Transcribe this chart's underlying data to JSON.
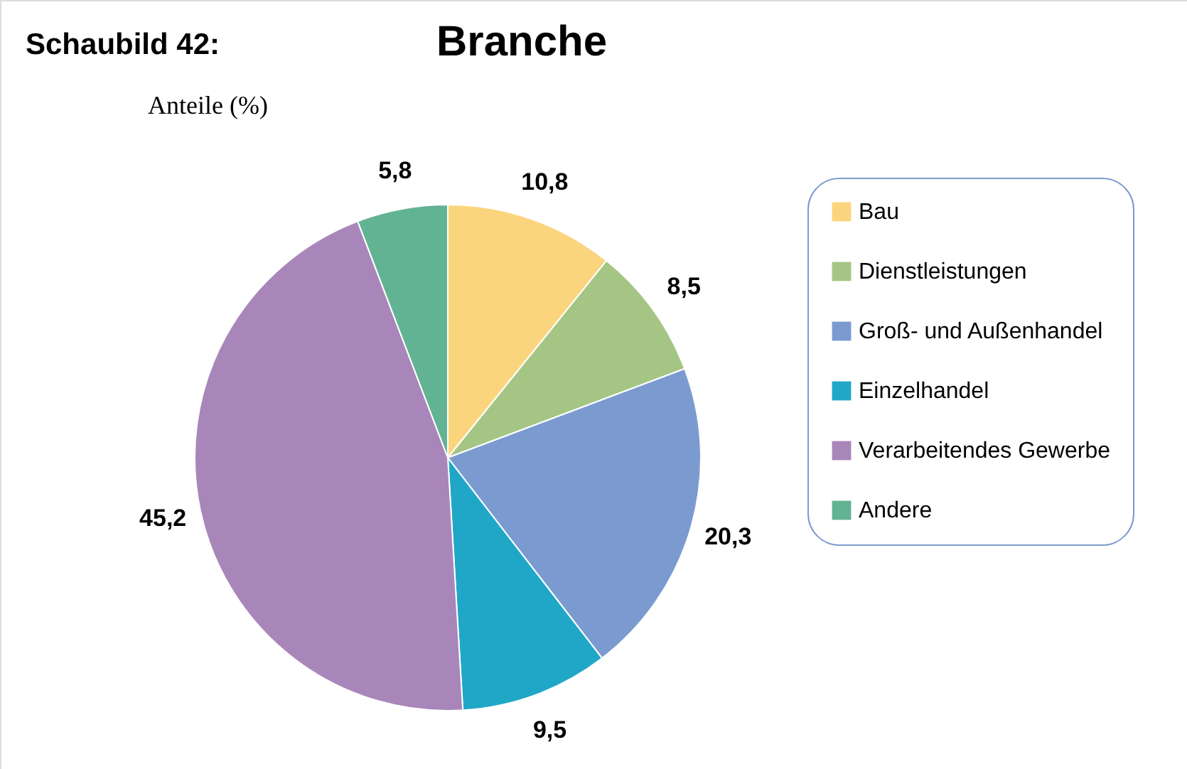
{
  "chart_data": {
    "type": "pie",
    "title": "Branche",
    "subtitle": "Anteile (%)",
    "annotations": [
      "Schaubild 42:"
    ],
    "categories": [
      "Bau",
      "Dienstleistungen",
      "Groß- und Außenhandel",
      "Einzelhandel",
      "Verarbeitendes Gewerbe",
      "Andere"
    ],
    "values": [
      10.8,
      8.5,
      20.3,
      9.5,
      45.2,
      5.8
    ],
    "colors": [
      "#fbd57e",
      "#a5c584",
      "#7b9bd0",
      "#20a7c8",
      "#a986b9",
      "#62b393"
    ],
    "value_labels": [
      "10,8",
      "8,5",
      "20,3",
      "9,5",
      "45,2",
      "5,8"
    ],
    "legend": "right"
  }
}
